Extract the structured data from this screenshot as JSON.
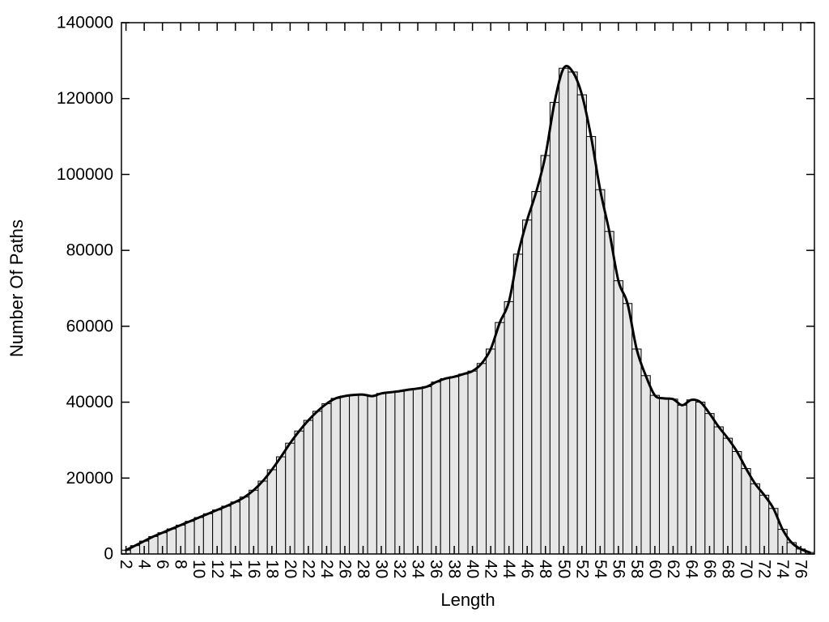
{
  "chart_data": {
    "type": "bar",
    "title": "",
    "xlabel": "Length",
    "ylabel": "Number Of Paths",
    "xlim": [
      1.5,
      77.5
    ],
    "ylim": [
      0,
      140000
    ],
    "y_tick_step": 20000,
    "y_tick_labels": [
      "0",
      "20000",
      "40000",
      "60000",
      "80000",
      "100000",
      "120000",
      "140000"
    ],
    "x_tick_start": 2,
    "x_tick_end": 76,
    "x_tick_step": 2,
    "grid": "off",
    "legend": "none",
    "bar_fill": "#e6e6e6",
    "bar_stroke": "#000000",
    "line_color": "#000000",
    "line_width": 3,
    "x": [
      2,
      3,
      4,
      5,
      6,
      7,
      8,
      9,
      10,
      11,
      12,
      13,
      14,
      15,
      16,
      17,
      18,
      19,
      20,
      21,
      22,
      23,
      24,
      25,
      26,
      27,
      28,
      29,
      30,
      31,
      32,
      33,
      34,
      35,
      36,
      37,
      38,
      39,
      40,
      41,
      42,
      43,
      44,
      45,
      46,
      47,
      48,
      49,
      50,
      51,
      52,
      53,
      54,
      55,
      56,
      57,
      58,
      59,
      60,
      61,
      62,
      63,
      64,
      65,
      66,
      67,
      68,
      69,
      70,
      71,
      72,
      73,
      74,
      75,
      76,
      77
    ],
    "values": [
      1000,
      2200,
      3400,
      4600,
      5600,
      6600,
      7600,
      8600,
      9600,
      10600,
      11600,
      12600,
      13700,
      15000,
      16800,
      19200,
      22200,
      25600,
      29200,
      32400,
      35200,
      37600,
      39600,
      41000,
      41600,
      41900,
      42000,
      41600,
      42300,
      42600,
      42900,
      43300,
      43600,
      44100,
      45300,
      46200,
      46700,
      47400,
      48200,
      50200,
      54000,
      61000,
      66500,
      79000,
      88000,
      95500,
      105000,
      119000,
      128000,
      127000,
      121000,
      110000,
      96000,
      85000,
      72000,
      66000,
      54000,
      47000,
      41800,
      41000,
      40800,
      39200,
      40600,
      40000,
      37000,
      33500,
      30500,
      27000,
      22500,
      18500,
      15500,
      12000,
      6500,
      3000,
      1300,
      400
    ]
  }
}
